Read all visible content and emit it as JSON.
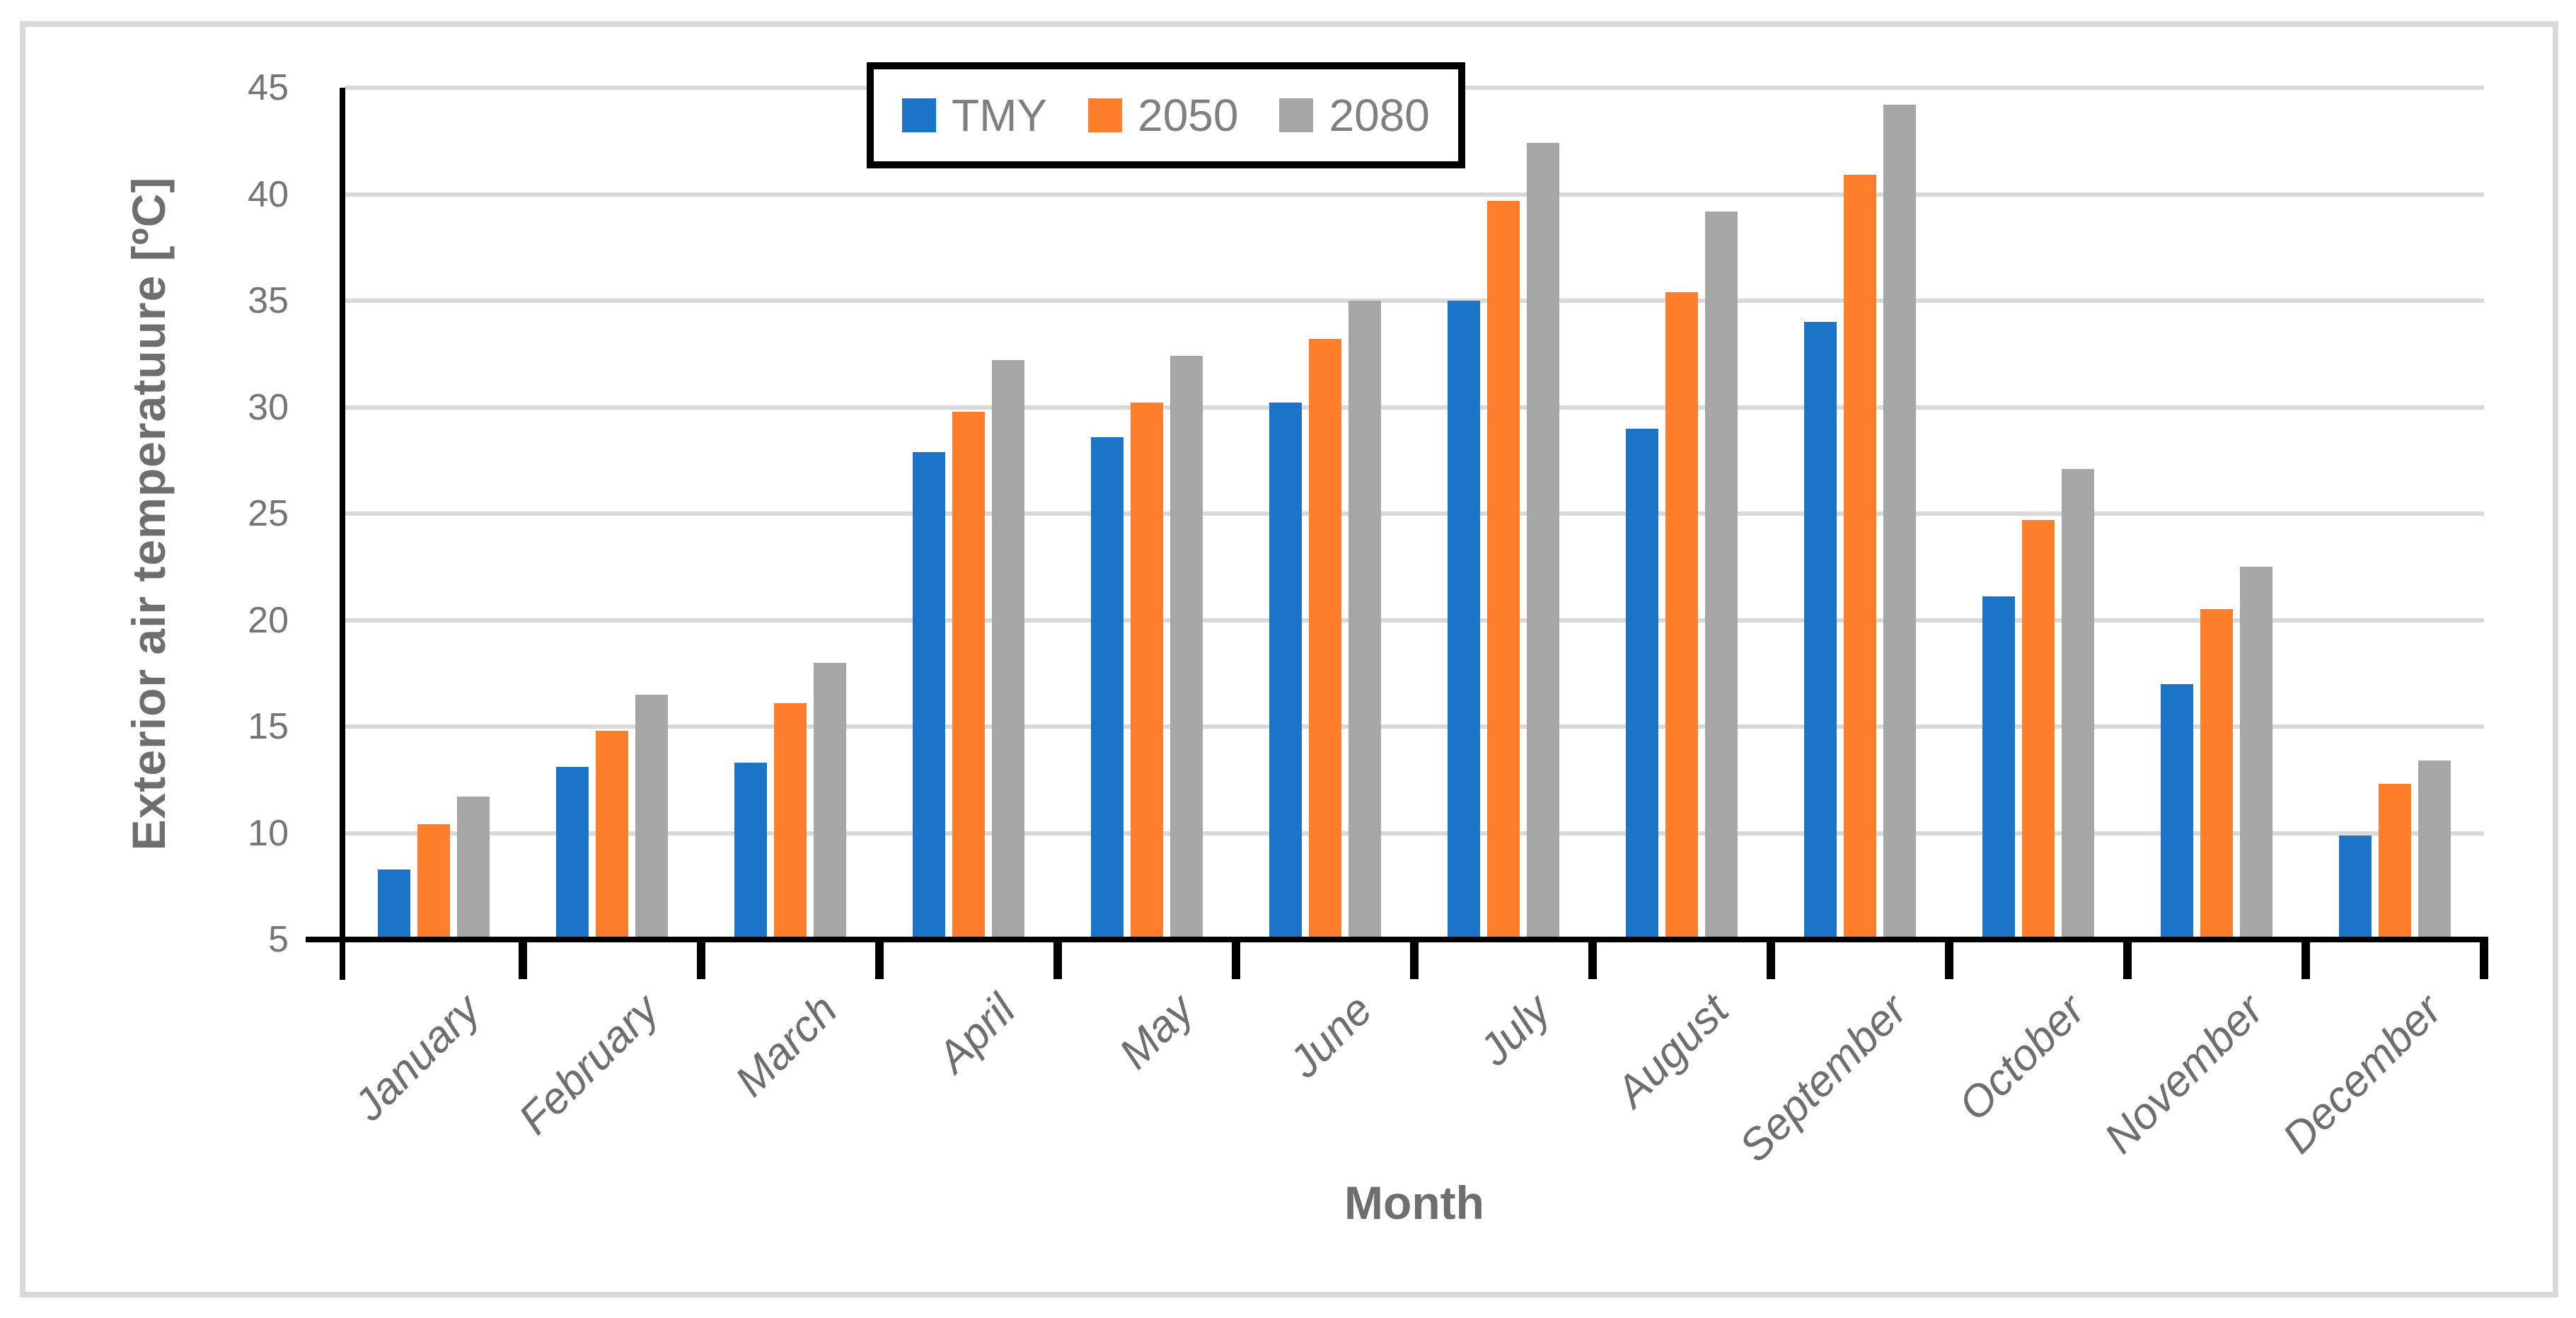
{
  "axes": {
    "y_title": "Exterior air temperatuure [ºC]",
    "x_title": "Month"
  },
  "legend": {
    "items": [
      {
        "label": "TMY",
        "color": "#1b74c8"
      },
      {
        "label": "2050",
        "color": "#ff7d2b"
      },
      {
        "label": "2080",
        "color": "#a6a6a6"
      }
    ]
  },
  "chart_data": {
    "type": "bar",
    "title": "",
    "xlabel": "Month",
    "ylabel": "Exterior air temperatuure [ºC]",
    "categories": [
      "January",
      "February",
      "March",
      "April",
      "May",
      "June",
      "July",
      "August",
      "September",
      "October",
      "November",
      "December"
    ],
    "series": [
      {
        "name": "TMY",
        "color": "#1b74c8",
        "values": [
          8.3,
          13.1,
          13.3,
          27.9,
          28.6,
          30.2,
          35.0,
          29.0,
          34.0,
          21.1,
          17.0,
          9.9
        ]
      },
      {
        "name": "2050",
        "color": "#ff7d2b",
        "values": [
          10.4,
          14.8,
          16.1,
          29.8,
          30.2,
          33.2,
          39.7,
          35.4,
          40.9,
          24.7,
          20.5,
          12.3
        ]
      },
      {
        "name": "2080",
        "color": "#a6a6a6",
        "values": [
          11.7,
          16.5,
          18.0,
          32.2,
          32.4,
          35.0,
          42.4,
          39.2,
          44.2,
          27.1,
          22.5,
          13.4
        ]
      }
    ],
    "ylim": [
      5,
      45
    ],
    "yticks": [
      5,
      10,
      15,
      20,
      25,
      30,
      35,
      40,
      45
    ],
    "grid": "horizontal",
    "gridline_color": "#d9d9d9",
    "axis_color": "#000000",
    "tick_label_color": "#757575",
    "axis_title_color": "#6e6e6e",
    "legend_position": "top-center-inside",
    "legend_border_color": "#000000",
    "figure_border_color": "#d9d9d9"
  }
}
